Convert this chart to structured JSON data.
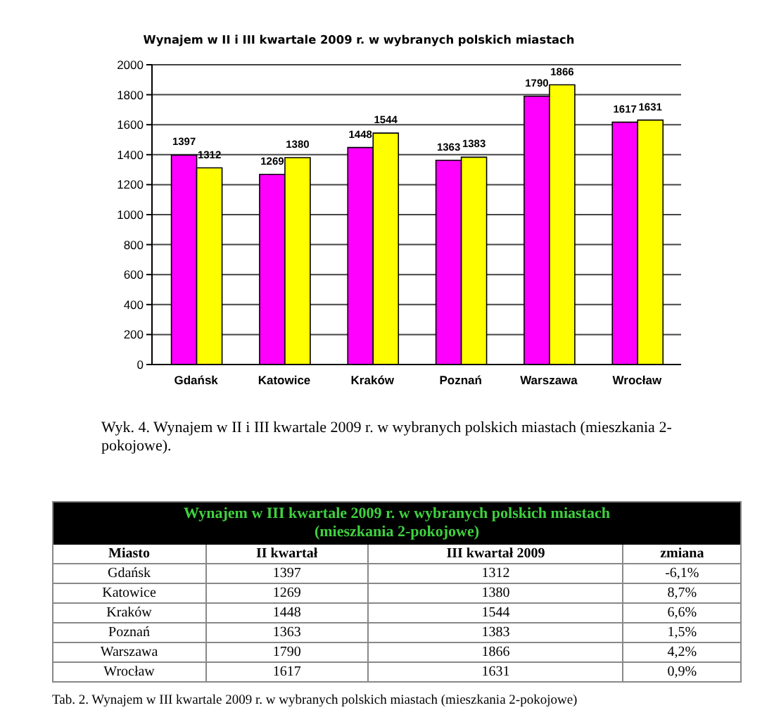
{
  "chart_data": [
    {
      "type": "bar",
      "title": "Wynajem w II i III kwartale 2009 r. w wybranych polskich miastach",
      "categories": [
        "Gdańsk",
        "Katowice",
        "Kraków",
        "Poznań",
        "Warszawa",
        "Wrocław"
      ],
      "series": [
        {
          "color": "#ff00ff",
          "values": [
            1397,
            1269,
            1448,
            1363,
            1790,
            1617
          ]
        },
        {
          "color": "#ffff00",
          "values": [
            1312,
            1380,
            1544,
            1383,
            1866,
            1631
          ]
        }
      ],
      "ylim": [
        0,
        2000
      ],
      "yticks": [
        0,
        200,
        400,
        600,
        800,
        1000,
        1200,
        1400,
        1600,
        1800,
        2000
      ],
      "grid": "y",
      "data_labels": true,
      "annotations": [
        "Wyk. 4. Wynajem w II i III kwartale 2009 r. w wybranych polskich miastach (mieszkania 2-pokojowe)."
      ]
    },
    {
      "type": "other",
      "title": "Wynajem w III kwartale 2009 r. w wybranych polskich miastach (mieszkania 2-pokojowe)",
      "categories": [
        "Miasto",
        "II kwartał",
        "III kwartał 2009",
        "zmiana"
      ],
      "cell_labels": [
        [
          "Gdańsk",
          "1397",
          "1312",
          "-6,1%"
        ],
        [
          "Katowice",
          "1269",
          "1380",
          "8,7%"
        ],
        [
          "Kraków",
          "1448",
          "1544",
          "6,6%"
        ],
        [
          "Poznań",
          "1363",
          "1383",
          "1,5%"
        ],
        [
          "Warszawa",
          "1790",
          "1866",
          "4,2%"
        ],
        [
          "Wrocław",
          "1617",
          "1631",
          "0,9%"
        ]
      ],
      "annotations": [
        "Tab. 2. Wynajem w III kwartale 2009 r. w wybranych polskich miastach (mieszkania 2-pokojowe)"
      ]
    }
  ]
}
